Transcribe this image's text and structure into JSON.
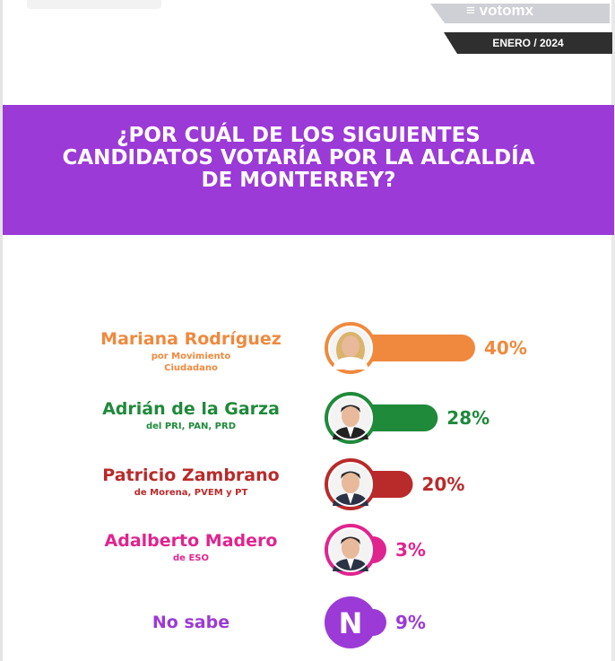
{
  "header": {
    "brand": "votomx",
    "date": "ENERO / 2024"
  },
  "banner": {
    "title": "¿POR CUÁL DE LOS SIGUIENTES CANDIDATOS VOTARÍA POR LA ALCALDÍA DE MONTERREY?"
  },
  "colors": {
    "banner": "#9b3ad6",
    "header_tag": "#2f2f2f"
  },
  "chart_data": {
    "type": "bar",
    "orientation": "horizontal",
    "title": "¿POR CUÁL DE LOS SIGUIENTES CANDIDATOS VOTARÍA POR LA ALCALDÍA DE MONTERREY?",
    "unit": "%",
    "xlim": [
      0,
      40
    ],
    "grid": false,
    "items": [
      {
        "name": "Mariana Rodríguez",
        "sub": [
          "por Movimiento",
          "Ciudadano"
        ],
        "value": 40,
        "label": "40%",
        "color": "#f0893e",
        "avatar": "photo"
      },
      {
        "name": "Adrián de la Garza",
        "sub": [
          "del PRI, PAN, PRD"
        ],
        "value": 28,
        "label": "28%",
        "color": "#1f8a3a",
        "avatar": "photo"
      },
      {
        "name": "Patricio Zambrano",
        "sub": [
          "de Morena, PVEM y PT"
        ],
        "value": 20,
        "label": "20%",
        "color": "#b92a2a",
        "avatar": "photo"
      },
      {
        "name": "Adalberto Madero",
        "sub": [
          "de ESO"
        ],
        "value": 3,
        "label": "3%",
        "color": "#e0248f",
        "avatar": "photo"
      },
      {
        "name": "No sabe",
        "sub": [],
        "value": 9,
        "label": "9%",
        "color": "#9b3ad6",
        "avatar": "N"
      }
    ]
  }
}
